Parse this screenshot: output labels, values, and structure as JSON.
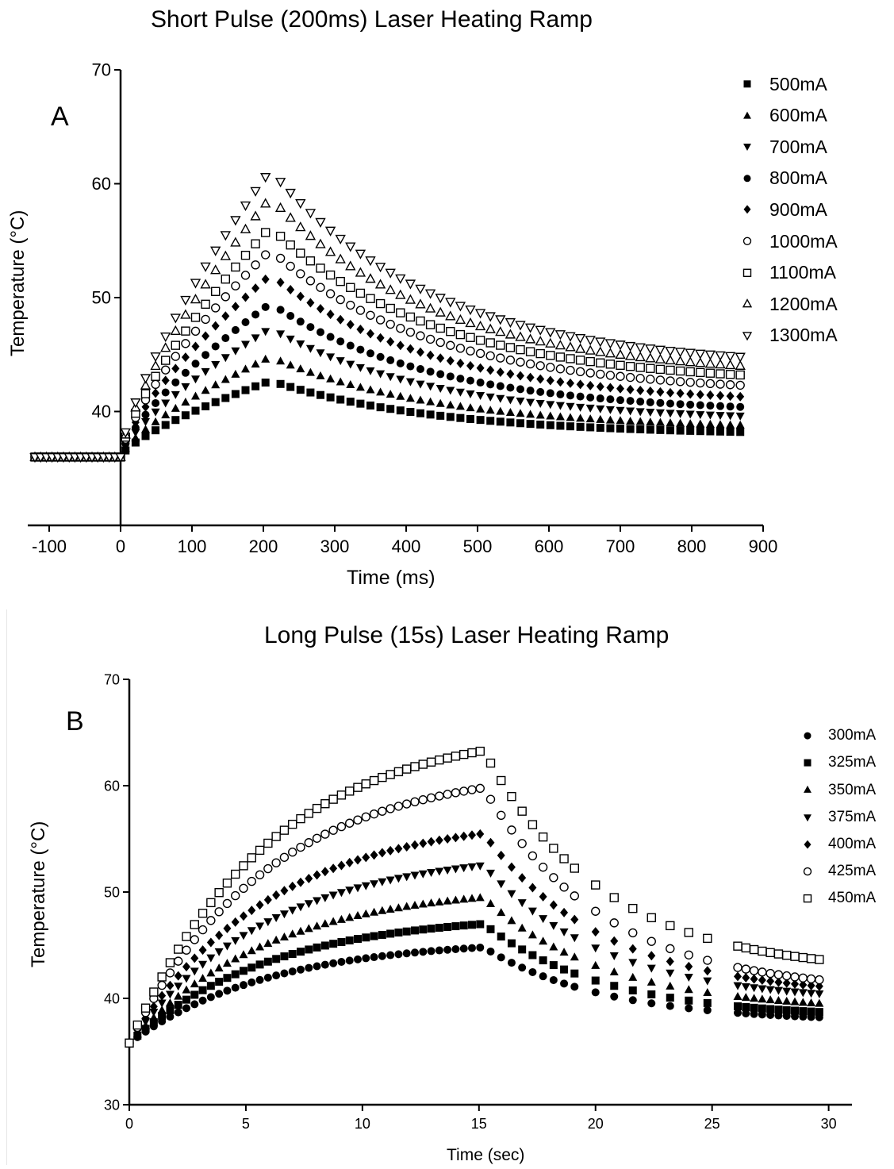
{
  "chart_data": [
    {
      "id": "A",
      "type": "scatter",
      "panel_label": "A",
      "title": "Short Pulse (200ms) Laser Heating Ramp",
      "xlabel": "Time (ms)",
      "ylabel": "Temperature (°C)",
      "xlim": [
        -130,
        900
      ],
      "ylim": [
        30,
        70
      ],
      "xticks": [
        -100,
        0,
        100,
        200,
        300,
        400,
        500,
        600,
        700,
        800,
        900
      ],
      "yticks": [
        40,
        50,
        60,
        70
      ],
      "legend_position": "top-right",
      "grid": false,
      "baseline_temp": 36,
      "pulse_end": 210,
      "series": [
        {
          "name": "500mA",
          "marker": "square",
          "peak": 42.7,
          "end": 38.2
        },
        {
          "name": "600mA",
          "marker": "triangle-up",
          "peak": 44.8,
          "end": 38.8
        },
        {
          "name": "700mA",
          "marker": "triangle-down",
          "peak": 47.3,
          "end": 39.6
        },
        {
          "name": "800mA",
          "marker": "circle",
          "peak": 49.5,
          "end": 40.4
        },
        {
          "name": "900mA",
          "marker": "diamond",
          "peak": 52.0,
          "end": 41.3
        },
        {
          "name": "1000mA",
          "marker": "circle-open",
          "peak": 54.2,
          "end": 42.3
        },
        {
          "name": "1100mA",
          "marker": "square-open",
          "peak": 56.2,
          "end": 43.2
        },
        {
          "name": "1200mA",
          "marker": "triangle-up-open",
          "peak": 58.8,
          "end": 44.0
        },
        {
          "name": "1300mA",
          "marker": "triangle-down-open",
          "peak": 61.2,
          "end": 44.8
        }
      ]
    },
    {
      "id": "B",
      "type": "scatter",
      "panel_label": "B",
      "title": "Long Pulse (15s) Laser Heating Ramp",
      "xlabel": "Time (sec)",
      "ylabel": "Temperature (°C)",
      "xlim": [
        0,
        31
      ],
      "ylim": [
        30,
        70
      ],
      "xticks": [
        0,
        5,
        10,
        15,
        20,
        25,
        30
      ],
      "yticks": [
        30,
        40,
        50,
        60,
        70
      ],
      "legend_position": "right",
      "grid": false,
      "start_temp": 35.8,
      "pulse_end": 15.2,
      "series": [
        {
          "name": "300mA",
          "marker": "circle",
          "peak": 44.8,
          "end": 38.2
        },
        {
          "name": "325mA",
          "marker": "square",
          "peak": 47.0,
          "end": 38.7
        },
        {
          "name": "350mA",
          "marker": "triangle-up",
          "peak": 49.5,
          "end": 39.5
        },
        {
          "name": "375mA",
          "marker": "triangle-down",
          "peak": 52.5,
          "end": 40.4
        },
        {
          "name": "400mA",
          "marker": "diamond",
          "peak": 55.5,
          "end": 41.1
        },
        {
          "name": "425mA",
          "marker": "circle-open",
          "peak": 59.8,
          "end": 41.7
        },
        {
          "name": "450mA",
          "marker": "square-open",
          "peak": 63.3,
          "end": 43.6
        }
      ]
    }
  ]
}
